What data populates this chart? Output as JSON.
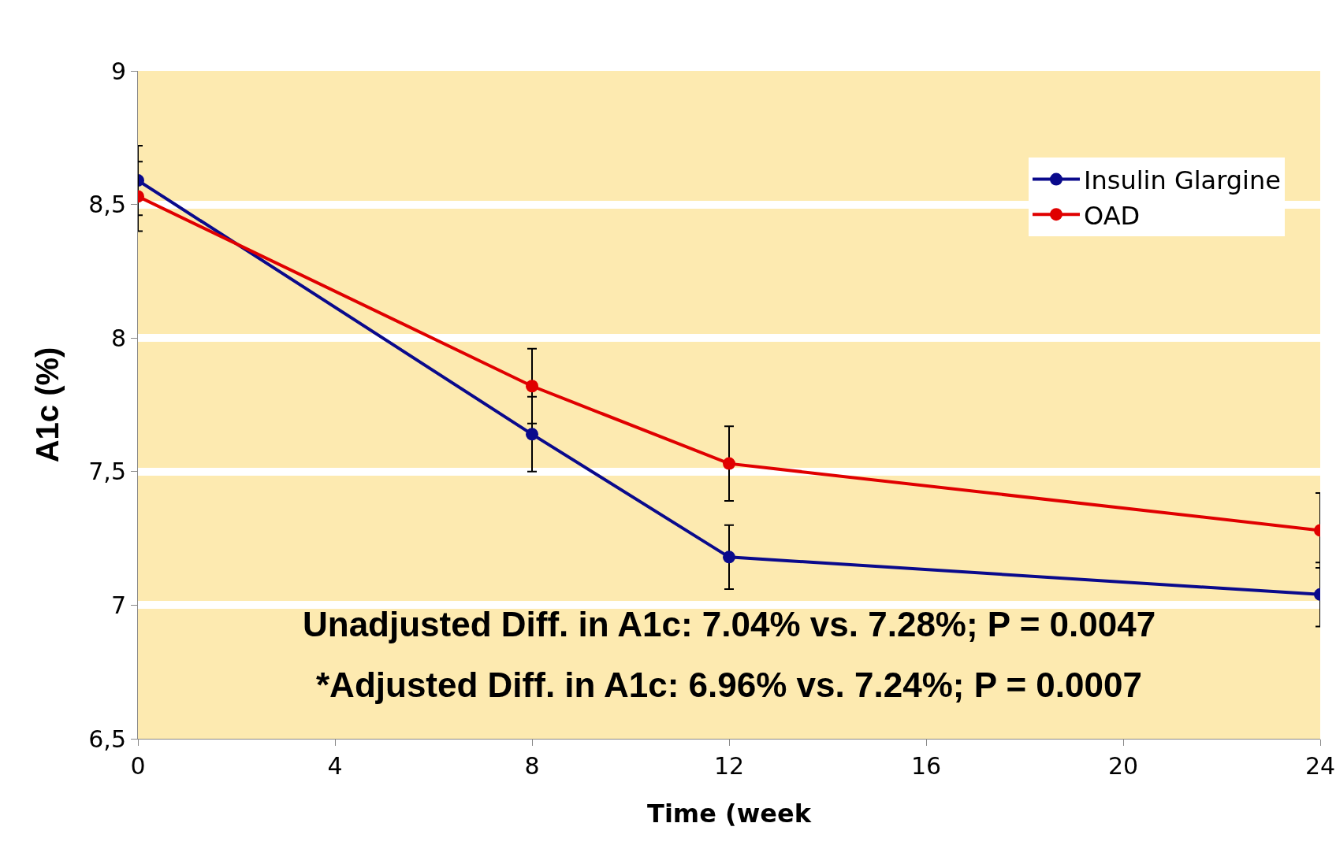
{
  "chart_data": {
    "type": "line",
    "xlabel": "Time (week",
    "ylabel": "A1c (%)",
    "x": [
      0,
      8,
      12,
      24
    ],
    "series": [
      {
        "name": "Insulin Glargine",
        "color": "#0a0a8c",
        "values": [
          8.59,
          7.64,
          7.18,
          7.04
        ],
        "errors": [
          0.13,
          0.14,
          0.12,
          0.12
        ]
      },
      {
        "name": "OAD",
        "color": "#e00000",
        "values": [
          8.53,
          7.82,
          7.53,
          7.28
        ],
        "errors": [
          0.13,
          0.14,
          0.14,
          0.14
        ]
      }
    ],
    "xlim": [
      0,
      24
    ],
    "xticks": [
      0,
      4,
      8,
      12,
      16,
      20,
      24
    ],
    "ylim": [
      6.5,
      9
    ],
    "yticks": [
      {
        "value": 6.5,
        "label": "6,5"
      },
      7,
      {
        "value": 7.5,
        "label": "7,5"
      },
      8,
      {
        "value": 8.5,
        "label": "8,5"
      },
      9
    ],
    "grid": "y",
    "legend": "top right",
    "marker": "circle",
    "line_style": "solid",
    "annotations": [
      "Unadjusted Diff. in A1c: 7.04% vs. 7.28%; P = 0.0047",
      "*Adjusted Diff. in A1c: 6.96% vs. 7.24%; P = 0.0007"
    ]
  }
}
